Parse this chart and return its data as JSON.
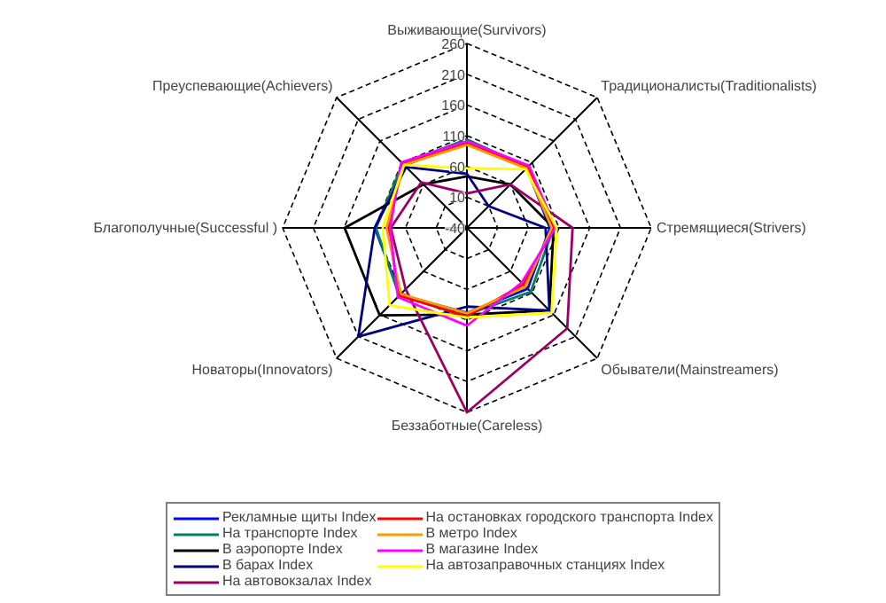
{
  "chart_data": {
    "type": "radar",
    "categories": [
      "Выживающие(Survivors)",
      "Традиционалисты(Traditionalists)",
      "Стремящиеся(Strivers)",
      "Обыватели(Mainstreamers)",
      "Беззаботные(Careless)",
      "Новаторы(Innovators)",
      "Благополучные(Successful )",
      "Преуспевающие(Achievers)"
    ],
    "ylim": [
      -40,
      260
    ],
    "yticks": [
      -40,
      10,
      60,
      110,
      160,
      210,
      260
    ],
    "grid": true,
    "legend": "bottom",
    "line_style": "solid",
    "marker": "none",
    "series": [
      {
        "name": "Рекламные щиты Index",
        "color": "#0000ff",
        "values": [
          101,
          98,
          95,
          100,
          98,
          114,
          110,
          104
        ]
      },
      {
        "name": "На транспорте Index",
        "color": "#008060",
        "values": [
          104,
          100,
          101,
          107,
          101,
          116,
          108,
          108
        ]
      },
      {
        "name": "В аэропорте Index",
        "color": "#000000",
        "values": [
          44,
          60,
          101,
          150,
          101,
          161,
          159,
          60
        ]
      },
      {
        "name": "В барах Index",
        "color": "#000080",
        "values": [
          48,
          10,
          88,
          150,
          88,
          210,
          110,
          100
        ]
      },
      {
        "name": "На автовокзалах Index",
        "color": "#990066",
        "values": [
          16,
          60,
          132,
          191,
          260,
          101,
          84,
          65
        ]
      },
      {
        "name": "На остановках городского транспорта Index",
        "color": "#ff0000",
        "values": [
          97,
          100,
          101,
          90,
          104,
          116,
          88,
          108
        ]
      },
      {
        "name": "В метро Index",
        "color": "#ff9900",
        "values": [
          95,
          97,
          98,
          95,
          99,
          112,
          91,
          105
        ]
      },
      {
        "name": "В магазине Index",
        "color": "#ff00ff",
        "values": [
          101,
          103,
          104,
          86,
          119,
          119,
          85,
          111
        ]
      },
      {
        "name": "На автозаправочных станциях Index",
        "color": "#ffff00",
        "values": [
          57,
          95,
          106,
          155,
          106,
          138,
          97,
          105
        ]
      }
    ]
  }
}
